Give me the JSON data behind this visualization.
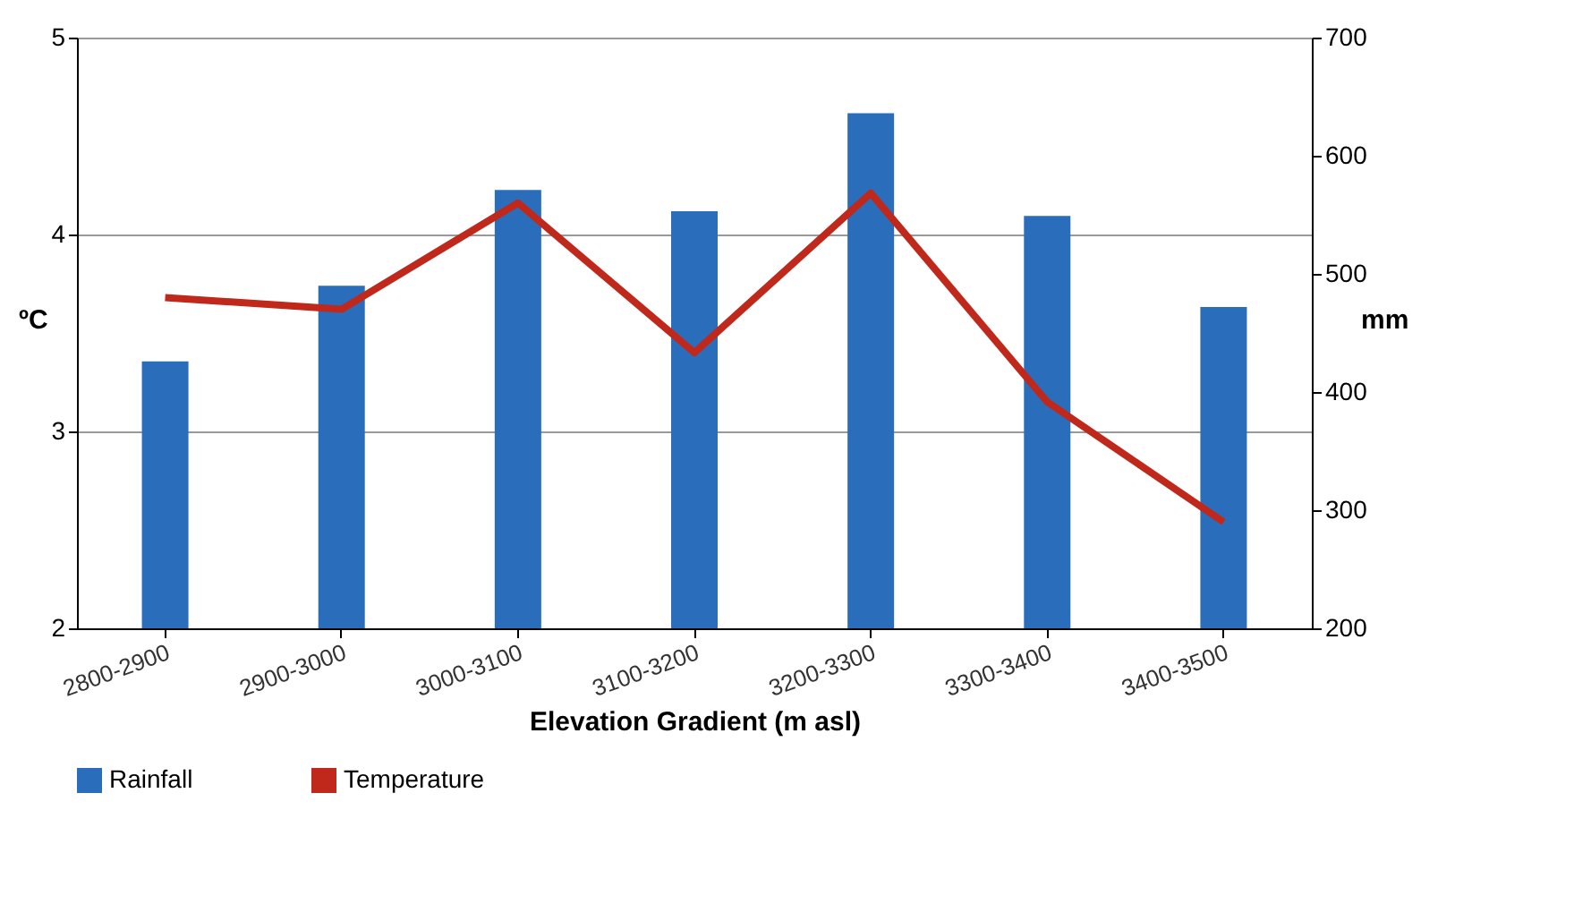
{
  "chart_data": {
    "type": "bar",
    "xlabel": "Elevation Gradient (m asl)",
    "ylabel": "ºC",
    "y2label": "mm",
    "categories": [
      "2800-2900",
      "2900-3000",
      "3000-3100",
      "3100-3200",
      "3200-3300",
      "3300-3400",
      "3400-3500"
    ],
    "series": [
      {
        "name": "Rainfall",
        "axis": "y2",
        "color": "#2a6ebb",
        "values": [
          426,
          490,
          571,
          553,
          636,
          549,
          472
        ]
      },
      {
        "name": "Temperature",
        "type": "line",
        "color": "#c0281c",
        "values": [
          3.68,
          3.62,
          4.16,
          3.4,
          4.21,
          3.15,
          2.54
        ]
      }
    ],
    "ylim": [
      2,
      5
    ],
    "yticks": [
      2,
      3,
      4,
      5
    ],
    "y2lim": [
      200,
      700
    ],
    "y2ticks": [
      200,
      300,
      400,
      500,
      600,
      700
    ],
    "grid": "y",
    "legend": "bottom"
  }
}
